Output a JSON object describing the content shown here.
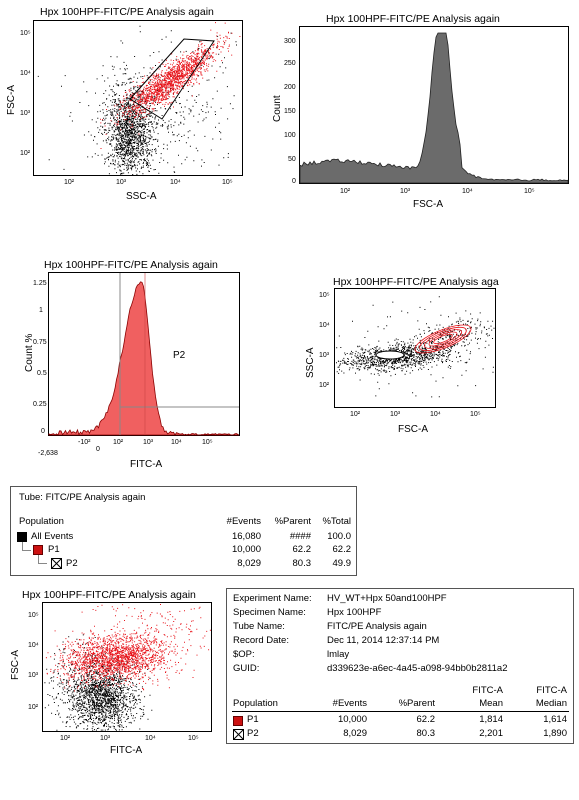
{
  "plot1": {
    "title": "Hpx 100HPF-FITC/PE Analysis again",
    "xlabel": "SSC-A",
    "ylabel": "FSC-A",
    "xticks": [
      "10²",
      "10³",
      "10⁴",
      "10⁵"
    ],
    "yticks": [
      "10⁵",
      "10⁴",
      "10³",
      "10²"
    ]
  },
  "plot2": {
    "title": "Hpx 100HPF-FITC/PE Analysis again",
    "xlabel": "FSC-A",
    "ylabel": "Count",
    "xticks": [
      "10²",
      "10³",
      "10⁴",
      "10⁵"
    ],
    "yticks": [
      "300",
      "250",
      "200",
      "150",
      "100",
      "50",
      "0"
    ]
  },
  "plot3": {
    "title": "Hpx 100HPF-FITC/PE Analysis again",
    "xlabel": "FITC-A",
    "ylabel": "Count %",
    "gate_label": "P2",
    "xticks": [
      "-2,638",
      "-10²",
      "0",
      "10²",
      "10³",
      "10⁴",
      "10⁵"
    ],
    "yticks": [
      "1.25",
      "1",
      "0.75",
      "0.5",
      "0.25",
      "0"
    ]
  },
  "plot4": {
    "title": "Hpx 100HPF-FITC/PE Analysis aga",
    "xlabel": "FSC-A",
    "ylabel": "SSC-A",
    "xticks": [
      "10²",
      "10³",
      "10⁴",
      "10⁵"
    ],
    "yticks": [
      "10⁵",
      "10⁴",
      "10³",
      "10²"
    ]
  },
  "plot5": {
    "title": "Hpx 100HPF-FITC/PE Analysis again",
    "xlabel": "FITC-A",
    "ylabel": "FSC-A",
    "xticks": [
      "10²",
      "10³",
      "10⁴",
      "10⁵"
    ],
    "yticks": [
      "10⁵",
      "10⁴",
      "10³",
      "10²"
    ]
  },
  "hierarchy": {
    "tube_label": "Tube:  FITC/PE Analysis again",
    "headers": [
      "Population",
      "#Events",
      "%Parent",
      "%Total"
    ],
    "rows": [
      {
        "name": "All Events",
        "events": "16,080",
        "parent": "####",
        "total": "100.0",
        "color": "#000000"
      },
      {
        "name": "P1",
        "events": "10,000",
        "parent": "62.2",
        "total": "62.2",
        "color": "#cc1111"
      },
      {
        "name": "P2",
        "events": "8,029",
        "parent": "80.3",
        "total": "49.9",
        "color": "#ffffff"
      }
    ]
  },
  "stats": {
    "info": [
      {
        "k": "Experiment Name:",
        "v": "HV_WT+Hpx 50and100HPF"
      },
      {
        "k": "Specimen Name:",
        "v": "Hpx 100HPF"
      },
      {
        "k": "Tube Name:",
        "v": "FITC/PE Analysis again"
      },
      {
        "k": "Record Date:",
        "v": "Dec 11, 2014 12:37:14 PM"
      },
      {
        "k": "$OP:",
        "v": "lmlay"
      },
      {
        "k": "GUID:",
        "v": "d339623e-a6ec-4a45-a098-94bb0b2811a2"
      }
    ],
    "headers": [
      "Population",
      "#Events",
      "%Parent",
      "FITC-A\nMean",
      "FITC-A\nMedian"
    ],
    "h_pop": "Population",
    "h_events": "#Events",
    "h_parent": "%Parent",
    "h_mean1": "FITC-A",
    "h_mean2": "Mean",
    "h_med1": "FITC-A",
    "h_med2": "Median",
    "rows": [
      {
        "name": "P1",
        "events": "10,000",
        "parent": "62.2",
        "mean": "1,814",
        "median": "1,614"
      },
      {
        "name": "P2",
        "events": "8,029",
        "parent": "80.3",
        "mean": "2,201",
        "median": "1,890"
      }
    ]
  },
  "colors": {
    "red": "#e8141b",
    "black": "#000000",
    "fill_gray": "#6b6b6b",
    "hist_red": "#f06060"
  }
}
